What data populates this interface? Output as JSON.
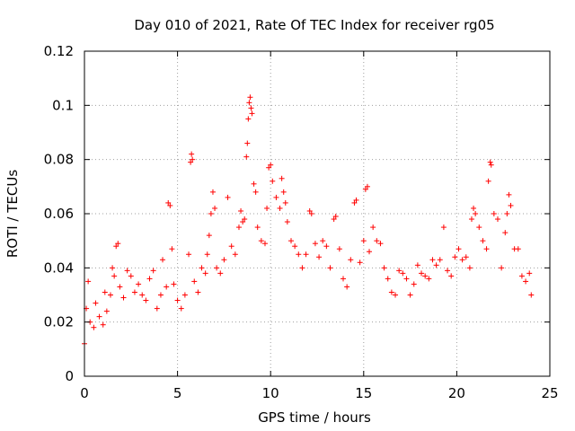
{
  "chart_data": {
    "type": "scatter",
    "title": "Day 010 of 2021, Rate Of TEC Index for receiver rg05",
    "xlabel": "GPS time / hours",
    "ylabel": "ROTI / TECUs",
    "xlim": [
      0,
      25
    ],
    "ylim": [
      0,
      0.12
    ],
    "xticks": [
      0,
      5,
      10,
      15,
      20,
      25
    ],
    "xtick_labels": [
      "0",
      "5",
      "10",
      "15",
      "20",
      "25"
    ],
    "yticks": [
      0,
      0.02,
      0.04,
      0.06,
      0.08,
      0.1,
      0.12
    ],
    "ytick_labels": [
      "0",
      "0.02",
      "0.04",
      "0.06",
      "0.08",
      "0.1",
      "0.12"
    ],
    "grid": true,
    "marker": "+",
    "color": "#ff0000",
    "series": [
      {
        "points": [
          [
            0.0,
            0.012
          ],
          [
            0.1,
            0.025
          ],
          [
            0.2,
            0.035
          ],
          [
            0.3,
            0.02
          ],
          [
            0.5,
            0.018
          ],
          [
            0.6,
            0.027
          ],
          [
            0.8,
            0.022
          ],
          [
            1.0,
            0.019
          ],
          [
            1.1,
            0.031
          ],
          [
            1.2,
            0.024
          ],
          [
            1.4,
            0.03
          ],
          [
            1.5,
            0.04
          ],
          [
            1.6,
            0.037
          ],
          [
            1.7,
            0.048
          ],
          [
            1.8,
            0.049
          ],
          [
            1.9,
            0.033
          ],
          [
            2.1,
            0.029
          ],
          [
            2.3,
            0.039
          ],
          [
            2.5,
            0.037
          ],
          [
            2.7,
            0.031
          ],
          [
            2.9,
            0.034
          ],
          [
            3.1,
            0.03
          ],
          [
            3.3,
            0.028
          ],
          [
            3.5,
            0.036
          ],
          [
            3.7,
            0.039
          ],
          [
            3.9,
            0.025
          ],
          [
            4.1,
            0.03
          ],
          [
            4.2,
            0.043
          ],
          [
            4.4,
            0.033
          ],
          [
            4.5,
            0.064
          ],
          [
            4.6,
            0.063
          ],
          [
            4.7,
            0.047
          ],
          [
            4.8,
            0.034
          ],
          [
            5.0,
            0.028
          ],
          [
            5.2,
            0.025
          ],
          [
            5.4,
            0.03
          ],
          [
            5.6,
            0.045
          ],
          [
            5.7,
            0.079
          ],
          [
            5.75,
            0.082
          ],
          [
            5.8,
            0.08
          ],
          [
            5.9,
            0.035
          ],
          [
            6.1,
            0.031
          ],
          [
            6.3,
            0.04
          ],
          [
            6.5,
            0.038
          ],
          [
            6.6,
            0.045
          ],
          [
            6.7,
            0.052
          ],
          [
            6.8,
            0.06
          ],
          [
            6.9,
            0.068
          ],
          [
            7.0,
            0.062
          ],
          [
            7.1,
            0.04
          ],
          [
            7.3,
            0.038
          ],
          [
            7.5,
            0.043
          ],
          [
            7.7,
            0.066
          ],
          [
            7.9,
            0.048
          ],
          [
            8.1,
            0.045
          ],
          [
            8.3,
            0.055
          ],
          [
            8.4,
            0.061
          ],
          [
            8.5,
            0.057
          ],
          [
            8.6,
            0.058
          ],
          [
            8.7,
            0.081
          ],
          [
            8.75,
            0.086
          ],
          [
            8.8,
            0.095
          ],
          [
            8.85,
            0.101
          ],
          [
            8.9,
            0.103
          ],
          [
            8.95,
            0.099
          ],
          [
            9.0,
            0.097
          ],
          [
            9.1,
            0.071
          ],
          [
            9.2,
            0.068
          ],
          [
            9.3,
            0.055
          ],
          [
            9.5,
            0.05
          ],
          [
            9.7,
            0.049
          ],
          [
            9.8,
            0.062
          ],
          [
            9.9,
            0.077
          ],
          [
            10.0,
            0.078
          ],
          [
            10.1,
            0.072
          ],
          [
            10.3,
            0.066
          ],
          [
            10.5,
            0.062
          ],
          [
            10.6,
            0.073
          ],
          [
            10.7,
            0.068
          ],
          [
            10.8,
            0.064
          ],
          [
            10.9,
            0.057
          ],
          [
            11.1,
            0.05
          ],
          [
            11.3,
            0.048
          ],
          [
            11.5,
            0.045
          ],
          [
            11.7,
            0.04
          ],
          [
            11.9,
            0.045
          ],
          [
            12.1,
            0.061
          ],
          [
            12.2,
            0.06
          ],
          [
            12.4,
            0.049
          ],
          [
            12.6,
            0.044
          ],
          [
            12.8,
            0.05
          ],
          [
            13.0,
            0.048
          ],
          [
            13.2,
            0.04
          ],
          [
            13.4,
            0.058
          ],
          [
            13.5,
            0.059
          ],
          [
            13.7,
            0.047
          ],
          [
            13.9,
            0.036
          ],
          [
            14.1,
            0.033
          ],
          [
            14.3,
            0.043
          ],
          [
            14.5,
            0.064
          ],
          [
            14.6,
            0.065
          ],
          [
            14.8,
            0.042
          ],
          [
            15.0,
            0.05
          ],
          [
            15.1,
            0.069
          ],
          [
            15.2,
            0.07
          ],
          [
            15.3,
            0.046
          ],
          [
            15.5,
            0.055
          ],
          [
            15.7,
            0.05
          ],
          [
            15.9,
            0.049
          ],
          [
            16.1,
            0.04
          ],
          [
            16.3,
            0.036
          ],
          [
            16.5,
            0.031
          ],
          [
            16.7,
            0.03
          ],
          [
            16.9,
            0.039
          ],
          [
            17.1,
            0.038
          ],
          [
            17.3,
            0.036
          ],
          [
            17.5,
            0.03
          ],
          [
            17.7,
            0.034
          ],
          [
            17.9,
            0.041
          ],
          [
            18.1,
            0.038
          ],
          [
            18.3,
            0.037
          ],
          [
            18.5,
            0.036
          ],
          [
            18.7,
            0.043
          ],
          [
            18.9,
            0.041
          ],
          [
            19.1,
            0.043
          ],
          [
            19.3,
            0.055
          ],
          [
            19.5,
            0.039
          ],
          [
            19.7,
            0.037
          ],
          [
            19.9,
            0.044
          ],
          [
            20.1,
            0.047
          ],
          [
            20.3,
            0.043
          ],
          [
            20.5,
            0.044
          ],
          [
            20.7,
            0.04
          ],
          [
            20.8,
            0.058
          ],
          [
            20.9,
            0.062
          ],
          [
            21.0,
            0.06
          ],
          [
            21.2,
            0.055
          ],
          [
            21.4,
            0.05
          ],
          [
            21.6,
            0.047
          ],
          [
            21.7,
            0.072
          ],
          [
            21.8,
            0.079
          ],
          [
            21.85,
            0.078
          ],
          [
            22.0,
            0.06
          ],
          [
            22.2,
            0.058
          ],
          [
            22.4,
            0.04
          ],
          [
            22.6,
            0.053
          ],
          [
            22.7,
            0.06
          ],
          [
            22.8,
            0.067
          ],
          [
            22.9,
            0.063
          ],
          [
            23.1,
            0.047
          ],
          [
            23.3,
            0.047
          ],
          [
            23.5,
            0.037
          ],
          [
            23.7,
            0.035
          ],
          [
            23.9,
            0.038
          ],
          [
            24.0,
            0.03
          ]
        ]
      }
    ]
  }
}
